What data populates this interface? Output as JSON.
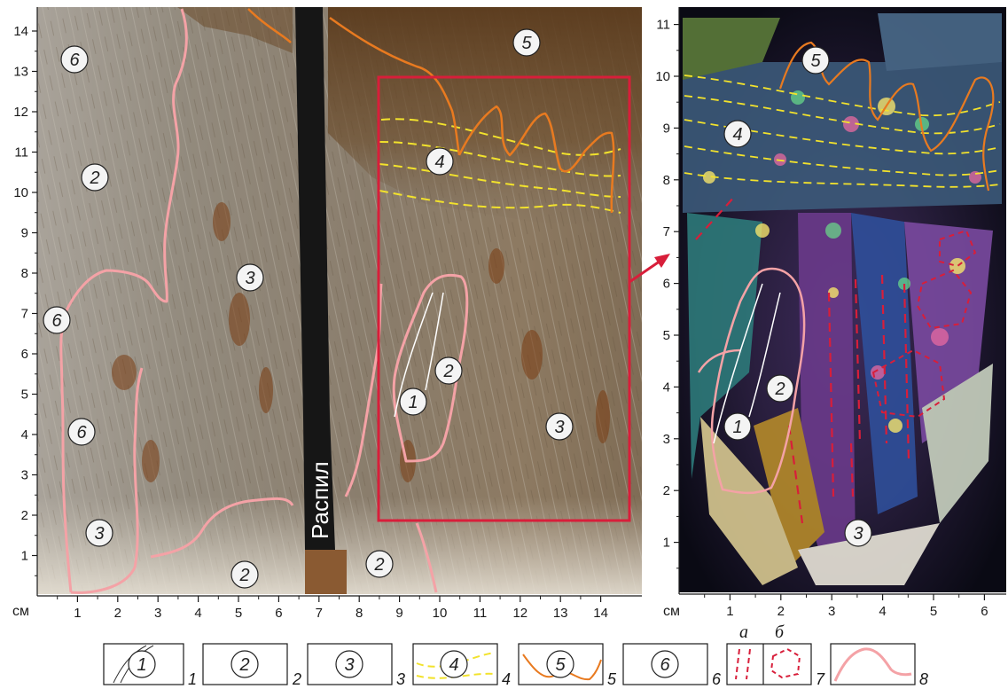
{
  "left_panel": {
    "y_ticks": [
      "1",
      "2",
      "3",
      "4",
      "5",
      "6",
      "7",
      "8",
      "9",
      "10",
      "11",
      "12",
      "13",
      "14"
    ],
    "x_ticks": [
      "1",
      "2",
      "3",
      "4",
      "5",
      "6",
      "7",
      "8",
      "9",
      "10",
      "11",
      "12",
      "13",
      "14"
    ],
    "unit": "см",
    "cut_label": "Распил",
    "zones": [
      {
        "id": "z6a",
        "text": "6"
      },
      {
        "id": "z2a",
        "text": "2"
      },
      {
        "id": "z6b",
        "text": "6"
      },
      {
        "id": "z6c",
        "text": "6"
      },
      {
        "id": "z3a",
        "text": "3"
      },
      {
        "id": "z2b",
        "text": "2"
      },
      {
        "id": "z3b",
        "text": "3"
      },
      {
        "id": "z2c",
        "text": "2"
      },
      {
        "id": "z5a",
        "text": "5"
      },
      {
        "id": "z4a",
        "text": "4"
      },
      {
        "id": "z1a",
        "text": "1"
      },
      {
        "id": "z2d",
        "text": "2"
      },
      {
        "id": "z3c",
        "text": "3"
      }
    ],
    "colors": {
      "frame": "#d81e3a",
      "boundary": "#f4a2a6",
      "yellow_dash": "#f2e22c",
      "orange": "#e87a20",
      "cut": "#161616"
    }
  },
  "right_panel": {
    "y_ticks": [
      "1",
      "2",
      "3",
      "4",
      "5",
      "6",
      "7",
      "8",
      "9",
      "10",
      "11"
    ],
    "x_ticks": [
      "1",
      "2",
      "3",
      "4",
      "5",
      "6"
    ],
    "unit": "см",
    "zones": [
      {
        "id": "r5",
        "text": "5"
      },
      {
        "id": "r4",
        "text": "4"
      },
      {
        "id": "r2",
        "text": "2"
      },
      {
        "id": "r1",
        "text": "1"
      },
      {
        "id": "r3",
        "text": "3"
      }
    ]
  },
  "legend": {
    "items": [
      {
        "symbol": "1",
        "number": "1"
      },
      {
        "symbol": "2",
        "number": "2"
      },
      {
        "symbol": "3",
        "number": "3"
      },
      {
        "symbol": "4",
        "number": "4"
      },
      {
        "symbol": "5",
        "number": "5"
      },
      {
        "symbol": "6",
        "number": "6"
      },
      {
        "symbol": "",
        "number": "7",
        "sub_a": "а",
        "sub_b": "б"
      },
      {
        "symbol": "",
        "number": "8"
      }
    ]
  }
}
